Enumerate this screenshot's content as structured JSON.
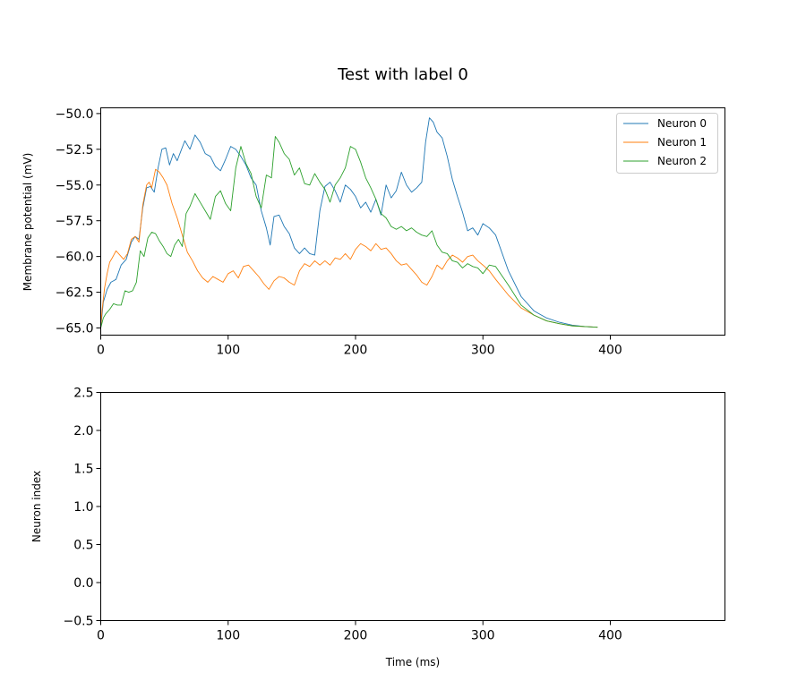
{
  "figure": {
    "title": "Test with label 0"
  },
  "chart_data": [
    {
      "type": "line",
      "title": "Test with label 0",
      "xlabel": "",
      "ylabel": "Membrane potential (mV)",
      "xlim": [
        0,
        490
      ],
      "ylim": [
        -65.5,
        -49.6
      ],
      "xticks": [
        0,
        100,
        200,
        300,
        400
      ],
      "xtick_labels": [
        "0",
        "100",
        "200",
        "300",
        "400"
      ],
      "yticks": [
        -65.0,
        -62.5,
        -60.0,
        -57.5,
        -55.0,
        -52.5,
        -50.0
      ],
      "ytick_labels": [
        "−65.0",
        "−62.5",
        "−60.0",
        "−57.5",
        "−55.0",
        "−52.5",
        "−50.0"
      ],
      "grid": false,
      "legend_position": "top-right",
      "series": [
        {
          "name": "Neuron 0",
          "color": "#1f77b4",
          "x": [
            0,
            2,
            5,
            8,
            12,
            16,
            20,
            24,
            27,
            30,
            33,
            36,
            39,
            42,
            45,
            48,
            51,
            54,
            57,
            60,
            63,
            66,
            70,
            74,
            78,
            82,
            86,
            90,
            94,
            98,
            102,
            106,
            110,
            114,
            118,
            122,
            126,
            130,
            133,
            136,
            140,
            144,
            148,
            152,
            156,
            160,
            164,
            168,
            172,
            176,
            180,
            184,
            188,
            192,
            196,
            200,
            204,
            208,
            212,
            216,
            220,
            224,
            228,
            232,
            236,
            240,
            244,
            248,
            252,
            255,
            258,
            261,
            264,
            268,
            272,
            276,
            280,
            284,
            288,
            292,
            296,
            300,
            305,
            310,
            320,
            330,
            340,
            350,
            360,
            370,
            380,
            390
          ],
          "y": [
            -65.0,
            -63.2,
            -62.3,
            -61.8,
            -61.6,
            -60.6,
            -60.2,
            -59.0,
            -58.6,
            -58.8,
            -56.6,
            -55.2,
            -55.1,
            -55.5,
            -53.8,
            -52.5,
            -52.4,
            -53.6,
            -52.8,
            -53.3,
            -52.6,
            -51.9,
            -52.5,
            -51.5,
            -52.0,
            -52.8,
            -53.0,
            -53.7,
            -54.0,
            -53.2,
            -52.3,
            -52.5,
            -53.0,
            -53.6,
            -54.5,
            -55.0,
            -56.8,
            -58.0,
            -59.2,
            -57.2,
            -57.1,
            -57.9,
            -58.4,
            -59.4,
            -59.8,
            -59.4,
            -59.8,
            -59.9,
            -56.8,
            -55.1,
            -54.8,
            -55.4,
            -56.2,
            -55.0,
            -55.3,
            -55.8,
            -56.6,
            -56.2,
            -56.9,
            -56.0,
            -57.1,
            -55.0,
            -55.9,
            -55.4,
            -54.1,
            -55.0,
            -55.5,
            -55.2,
            -54.8,
            -52.0,
            -50.3,
            -50.6,
            -51.3,
            -51.7,
            -53.0,
            -54.6,
            -55.8,
            -56.9,
            -58.2,
            -58.0,
            -58.5,
            -57.7,
            -58.0,
            -58.5,
            -61.0,
            -62.8,
            -63.8,
            -64.3,
            -64.6,
            -64.8,
            -64.9,
            -64.95
          ]
        },
        {
          "name": "Neuron 1",
          "color": "#ff7f0e",
          "x": [
            0,
            1,
            3,
            5,
            7,
            9,
            12,
            15,
            18,
            21,
            24,
            27,
            30,
            33,
            36,
            38,
            40,
            43,
            46,
            49,
            52,
            56,
            60,
            64,
            68,
            72,
            76,
            80,
            84,
            88,
            92,
            96,
            100,
            104,
            108,
            112,
            116,
            120,
            124,
            128,
            132,
            136,
            140,
            144,
            148,
            152,
            156,
            160,
            164,
            168,
            172,
            176,
            180,
            184,
            188,
            192,
            196,
            200,
            204,
            208,
            212,
            216,
            220,
            224,
            228,
            232,
            236,
            240,
            244,
            248,
            252,
            256,
            260,
            264,
            268,
            272,
            276,
            280,
            284,
            288,
            292,
            296,
            300,
            305,
            310,
            320,
            330,
            340,
            350,
            360,
            370,
            380,
            390
          ],
          "y": [
            -65.0,
            -63.8,
            -62.2,
            -61.2,
            -60.4,
            -60.1,
            -59.6,
            -59.9,
            -60.2,
            -59.8,
            -58.8,
            -58.6,
            -59.0,
            -56.4,
            -55.0,
            -54.8,
            -55.2,
            -53.9,
            -54.1,
            -54.5,
            -55.0,
            -56.3,
            -57.3,
            -58.5,
            -59.7,
            -60.3,
            -61.0,
            -61.5,
            -61.8,
            -61.4,
            -61.6,
            -61.8,
            -61.2,
            -61.0,
            -61.5,
            -60.7,
            -60.6,
            -61.0,
            -61.4,
            -61.9,
            -62.3,
            -61.7,
            -61.4,
            -61.5,
            -61.8,
            -62.0,
            -61.0,
            -60.5,
            -60.7,
            -60.3,
            -60.6,
            -60.3,
            -60.6,
            -60.1,
            -60.2,
            -59.8,
            -60.2,
            -59.5,
            -59.1,
            -59.3,
            -59.6,
            -59.1,
            -59.5,
            -59.4,
            -59.8,
            -60.3,
            -60.6,
            -60.5,
            -60.9,
            -61.3,
            -61.8,
            -62.0,
            -61.4,
            -60.6,
            -60.9,
            -60.3,
            -59.9,
            -60.1,
            -60.4,
            -60.0,
            -59.9,
            -60.3,
            -60.6,
            -61.0,
            -61.6,
            -62.7,
            -63.6,
            -64.1,
            -64.5,
            -64.7,
            -64.85,
            -64.9,
            -64.95
          ]
        },
        {
          "name": "Neuron 2",
          "color": "#2ca02c",
          "x": [
            0,
            2,
            4,
            7,
            10,
            13,
            16,
            19,
            22,
            25,
            28,
            31,
            34,
            37,
            40,
            43,
            46,
            49,
            52,
            55,
            58,
            61,
            64,
            67,
            70,
            74,
            78,
            82,
            86,
            90,
            94,
            98,
            102,
            106,
            110,
            114,
            118,
            122,
            126,
            130,
            134,
            137,
            140,
            144,
            148,
            152,
            156,
            160,
            164,
            168,
            172,
            176,
            180,
            184,
            188,
            192,
            196,
            200,
            204,
            208,
            212,
            216,
            220,
            224,
            228,
            232,
            236,
            240,
            244,
            248,
            252,
            256,
            260,
            264,
            268,
            272,
            276,
            280,
            284,
            288,
            292,
            296,
            300,
            305,
            310,
            320,
            330,
            340,
            350,
            360,
            370,
            380,
            390
          ],
          "y": [
            -65.0,
            -64.3,
            -64.0,
            -63.7,
            -63.3,
            -63.4,
            -63.4,
            -62.4,
            -62.5,
            -62.4,
            -61.8,
            -59.6,
            -60.0,
            -58.7,
            -58.3,
            -58.4,
            -58.9,
            -59.3,
            -59.8,
            -60.0,
            -59.2,
            -58.8,
            -59.3,
            -57.0,
            -56.5,
            -55.6,
            -56.2,
            -56.8,
            -57.4,
            -55.8,
            -55.4,
            -56.3,
            -56.8,
            -53.8,
            -52.3,
            -53.5,
            -54.2,
            -55.8,
            -56.6,
            -54.3,
            -54.5,
            -51.6,
            -52.0,
            -52.8,
            -53.2,
            -54.3,
            -53.8,
            -54.9,
            -55.0,
            -54.2,
            -54.8,
            -55.3,
            -56.2,
            -55.0,
            -54.5,
            -53.8,
            -52.3,
            -52.5,
            -53.4,
            -54.5,
            -55.2,
            -56.0,
            -57.0,
            -57.3,
            -57.9,
            -58.1,
            -57.9,
            -58.2,
            -58.0,
            -58.3,
            -58.5,
            -58.6,
            -58.2,
            -59.2,
            -59.7,
            -59.8,
            -60.3,
            -60.4,
            -60.8,
            -60.5,
            -60.7,
            -60.8,
            -61.2,
            -60.6,
            -60.7,
            -62.0,
            -63.4,
            -64.1,
            -64.5,
            -64.7,
            -64.85,
            -64.9,
            -64.95
          ]
        }
      ]
    },
    {
      "type": "scatter",
      "title": "",
      "xlabel": "Time (ms)",
      "ylabel": "Neuron index",
      "xlim": [
        0,
        490
      ],
      "ylim": [
        -0.5,
        2.5
      ],
      "xticks": [
        0,
        100,
        200,
        300,
        400
      ],
      "xtick_labels": [
        "0",
        "100",
        "200",
        "300",
        "400"
      ],
      "yticks": [
        -0.5,
        0.0,
        0.5,
        1.0,
        1.5,
        2.0,
        2.5
      ],
      "ytick_labels": [
        "−0.5",
        "0.0",
        "0.5",
        "1.0",
        "1.5",
        "2.0",
        "2.5"
      ],
      "grid": false,
      "series": []
    }
  ]
}
